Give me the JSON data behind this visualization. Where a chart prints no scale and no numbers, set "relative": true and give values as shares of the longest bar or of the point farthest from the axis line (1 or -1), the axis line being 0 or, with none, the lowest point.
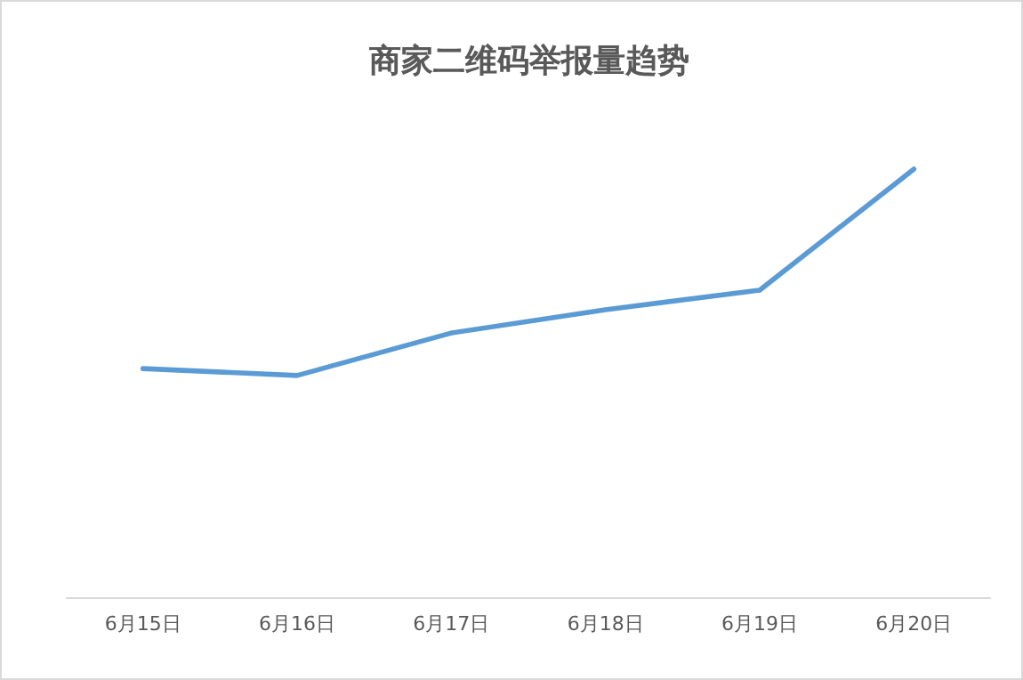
{
  "chart_data": {
    "type": "line",
    "title": "商家二维码举报量趋势",
    "categories": [
      "6月15日",
      "6月16日",
      "6月17日",
      "6月18日",
      "6月19日",
      "6月20日"
    ],
    "series": [
      {
        "color": "#5b9bd5",
        "values": [
          0.535,
          0.519,
          0.618,
          0.672,
          0.718,
          1
        ]
      }
    ],
    "relative": true,
    "marker": "none",
    "line_style": "solid"
  }
}
